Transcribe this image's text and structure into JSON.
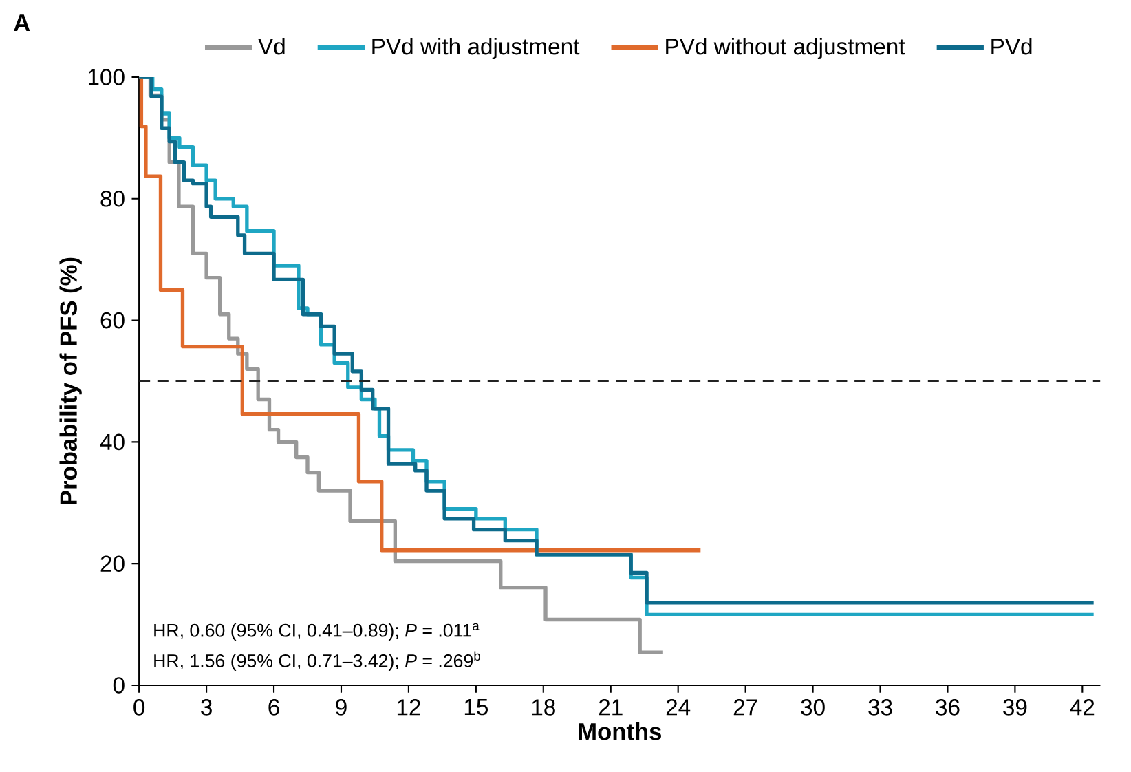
{
  "chart_data": {
    "type": "step",
    "title": "A",
    "xlabel": "Months",
    "ylabel": "Probability of PFS (%)",
    "xlim": [
      0,
      42.8
    ],
    "ylim": [
      0,
      100
    ],
    "xticks": [
      0,
      3,
      6,
      9,
      12,
      15,
      18,
      21,
      24,
      27,
      30,
      33,
      36,
      39,
      42
    ],
    "yticks": [
      0,
      20,
      40,
      60,
      80,
      100
    ],
    "legend": "top",
    "marker": "none",
    "line_style": "solid",
    "ref_lines": [
      {
        "axis": "y",
        "value": 50,
        "color": "#222222",
        "line_style": "dashed"
      }
    ],
    "annotations": [
      "HR, 0.60 (95% CI, 0.41–0.89); *P* = .011$^{a}$",
      "HR, 1.56 (95% CI, 0.71–3.42); *P* = .269$^{b}$"
    ],
    "series": [
      {
        "name": "Vd",
        "color": "#999999",
        "x": [
          0,
          0.5,
          1,
          1.35,
          1.77,
          2.4,
          3,
          3.6,
          4,
          4.4,
          4.8,
          5.3,
          5.8,
          6.2,
          7,
          7.5,
          8,
          9.4,
          11.4,
          16.1,
          18.1,
          22.3,
          23.3
        ],
        "values": [
          100,
          97,
          93,
          86,
          78.7,
          71,
          67,
          61,
          57,
          54.5,
          52,
          47,
          42,
          40,
          37.5,
          35,
          32,
          27,
          20.4,
          16.1,
          10.8,
          5.4,
          5.4
        ]
      },
      {
        "name": "PVd with adjustment",
        "color": "#1fa6c3",
        "x": [
          0,
          0.6,
          1,
          1.35,
          1.8,
          2.4,
          3,
          3.4,
          4.2,
          4.8,
          6,
          7.1,
          7.5,
          8.1,
          8.7,
          9.3,
          9.9,
          10.5,
          10.7,
          11.1,
          12.2,
          12.8,
          13.6,
          15,
          16.3,
          17.7,
          21.9,
          22.6,
          42.5
        ],
        "values": [
          100,
          98,
          94,
          90,
          88.5,
          85.5,
          83,
          80,
          78.7,
          74.7,
          69,
          62,
          61,
          56,
          53,
          49,
          47,
          45.5,
          41,
          38.7,
          36.9,
          33.5,
          29,
          27.4,
          25.6,
          21.5,
          17.7,
          11.6,
          11.6
        ]
      },
      {
        "name": "PVd without adjustment",
        "color": "#e06a2c",
        "x": [
          0,
          0.1,
          0.3,
          0.96,
          1.94,
          4.6,
          9.78,
          10.8,
          25
        ],
        "values": [
          100,
          91.9,
          83.7,
          65,
          55.7,
          44.6,
          33.5,
          22.2,
          22.2
        ]
      },
      {
        "name": "PVd",
        "color": "#0d6b8c",
        "x": [
          0,
          0.55,
          1,
          1.35,
          1.6,
          2,
          2.4,
          3,
          3.2,
          4.4,
          4.7,
          6,
          7.3,
          8.1,
          8.7,
          9.5,
          9.9,
          10.4,
          11.1,
          12.3,
          12.8,
          13.6,
          14.9,
          16.3,
          17.7,
          21.9,
          22.6,
          42.5
        ],
        "values": [
          100,
          96.8,
          91.6,
          89.4,
          86,
          83,
          82.5,
          78.7,
          77,
          74,
          71,
          66.7,
          61,
          59,
          54.5,
          51.6,
          48.6,
          45.5,
          36.4,
          35.3,
          32,
          27.4,
          25.6,
          23.8,
          21.5,
          18.5,
          13.6,
          13.6
        ]
      }
    ]
  }
}
